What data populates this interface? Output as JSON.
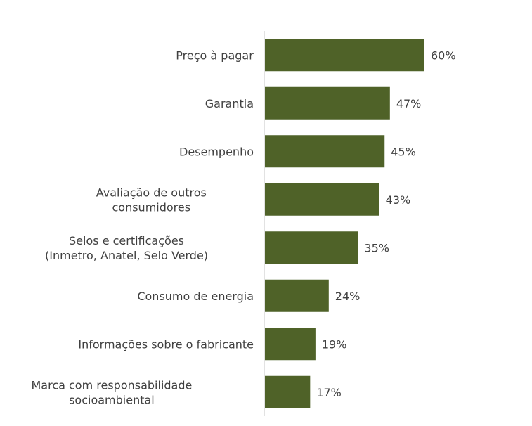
{
  "chart_data": {
    "type": "bar",
    "orientation": "horizontal",
    "categories": [
      [
        "Preço à pagar"
      ],
      [
        "Garantia"
      ],
      [
        "Desempenho"
      ],
      [
        "Avaliação de outros",
        "consumidores"
      ],
      [
        "Selos e certificações",
        "(Inmetro, Anatel, Selo Verde)"
      ],
      [
        "Consumo de energia"
      ],
      [
        "Informações sobre o fabricante"
      ],
      [
        "Marca com responsabilidade",
        "socioambiental"
      ]
    ],
    "values": [
      60,
      47,
      45,
      43,
      35,
      24,
      19,
      17
    ],
    "data_labels": [
      "60%",
      "47%",
      "45%",
      "43%",
      "35%",
      "24%",
      "19%",
      "17%"
    ],
    "value_unit": "%",
    "bar_color": "#4f6228",
    "axis_color": "#d9d9d9",
    "text_color": "#404040",
    "title": "",
    "xlabel": "",
    "ylabel": "",
    "xlim": [
      0,
      60
    ],
    "grid": false,
    "legend": "none"
  }
}
